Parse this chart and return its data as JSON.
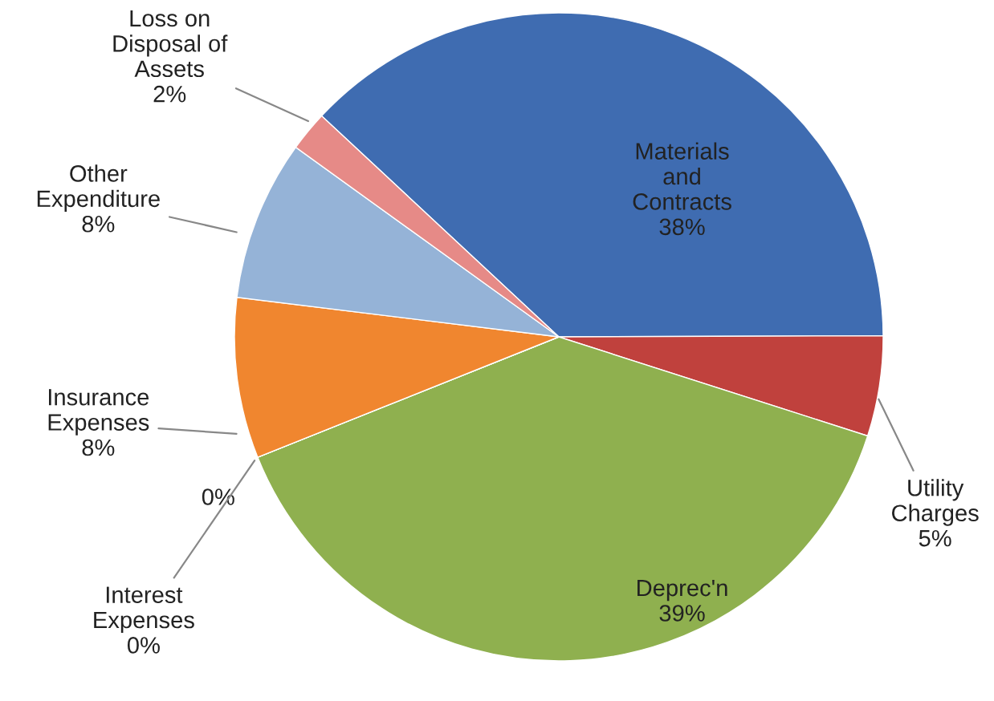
{
  "chart_data": {
    "type": "pie",
    "categories": [
      "Materials and Contracts",
      "Utility Charges",
      "Deprec'n",
      null,
      "Interest Expenses",
      "Insurance Expenses",
      "Other Expenditure",
      "Loss on Disposal of Assets"
    ],
    "values": [
      38,
      5,
      39,
      0,
      0,
      8,
      8,
      2
    ],
    "value_labels": [
      "38%",
      "5%",
      "39%",
      "0%",
      "0%",
      "8%",
      "8%",
      "2%"
    ],
    "colors": [
      "#3f6cb1",
      "#c0413d",
      "#8fb04f",
      "#8064a2",
      "#4bacc6",
      "#f0862f",
      "#95b3d7",
      "#e68a87"
    ],
    "legend": false
  }
}
